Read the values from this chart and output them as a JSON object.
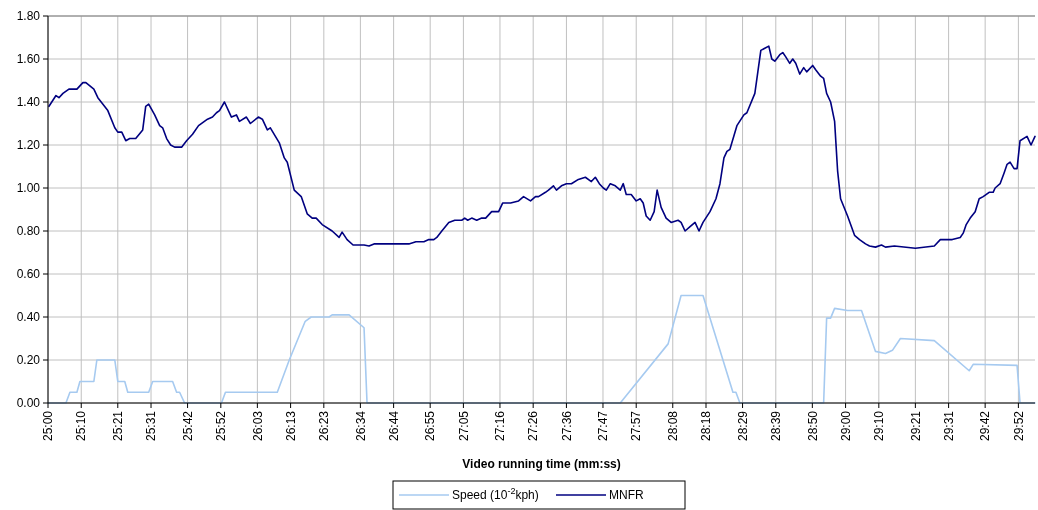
{
  "chart_data": {
    "type": "line",
    "xlabel": "Video running time (mm:ss)",
    "xlim": [
      25,
      29.95
    ],
    "xticks": [
      {
        "value": 25,
        "label": "25:00"
      },
      {
        "value": 25.1667,
        "label": "25:10"
      },
      {
        "value": 25.35,
        "label": "25:21"
      },
      {
        "value": 25.5167,
        "label": "25:31"
      },
      {
        "value": 25.7,
        "label": "25:42"
      },
      {
        "value": 25.8667,
        "label": "25:52"
      },
      {
        "value": 26.05,
        "label": "26:03"
      },
      {
        "value": 26.2167,
        "label": "26:13"
      },
      {
        "value": 26.3833,
        "label": "26:23"
      },
      {
        "value": 26.5667,
        "label": "26:34"
      },
      {
        "value": 26.7333,
        "label": "26:44"
      },
      {
        "value": 26.9167,
        "label": "26:55"
      },
      {
        "value": 27.0833,
        "label": "27:05"
      },
      {
        "value": 27.2667,
        "label": "27:16"
      },
      {
        "value": 27.4333,
        "label": "27:26"
      },
      {
        "value": 27.6,
        "label": "27:36"
      },
      {
        "value": 27.7833,
        "label": "27:47"
      },
      {
        "value": 27.95,
        "label": "27:57"
      },
      {
        "value": 28.1333,
        "label": "28:08"
      },
      {
        "value": 28.3,
        "label": "28:18"
      },
      {
        "value": 28.4833,
        "label": "28:29"
      },
      {
        "value": 28.65,
        "label": "28:39"
      },
      {
        "value": 28.8333,
        "label": "28:50"
      },
      {
        "value": 29,
        "label": "29:00"
      },
      {
        "value": 29.1667,
        "label": "29:10"
      },
      {
        "value": 29.35,
        "label": "29:21"
      },
      {
        "value": 29.5167,
        "label": "29:31"
      },
      {
        "value": 29.7,
        "label": "29:42"
      },
      {
        "value": 29.8667,
        "label": "29:52"
      }
    ],
    "ylim": [
      0,
      1.8
    ],
    "yticks": [
      {
        "value": 0,
        "label": "0.00"
      },
      {
        "value": 0.2,
        "label": "0.20"
      },
      {
        "value": 0.4,
        "label": "0.40"
      },
      {
        "value": 0.6,
        "label": "0.60"
      },
      {
        "value": 0.8,
        "label": "0.80"
      },
      {
        "value": 1,
        "label": "1.00"
      },
      {
        "value": 1.2,
        "label": "1.20"
      },
      {
        "value": 1.4,
        "label": "1.40"
      },
      {
        "value": 1.6,
        "label": "1.60"
      },
      {
        "value": 1.8,
        "label": "1.80"
      }
    ],
    "grid": true,
    "legend": "bottom",
    "marker": "none",
    "line_style": "solid",
    "series": [
      {
        "name": "Speed (10$^{-2}$kph)",
        "color": "#a6caf0",
        "x": [
          25,
          25.09,
          25.11,
          25.145,
          25.16,
          25.23,
          25.245,
          25.335,
          25.35,
          25.385,
          25.4,
          25.505,
          25.525,
          25.625,
          25.645,
          25.66,
          25.685,
          25.87,
          25.89,
          26.15,
          26.21,
          26.29,
          26.32,
          26.41,
          26.425,
          26.51,
          26.585,
          26.6,
          27.87,
          28.11,
          28.175,
          28.285,
          28.435,
          28.45,
          28.47,
          28.89,
          28.905,
          28.925,
          28.945,
          29.01,
          29.08,
          29.15,
          29.2,
          29.235,
          29.275,
          29.445,
          29.62,
          29.64,
          29.86,
          29.875,
          29.95
        ],
        "values": [
          0,
          0,
          0.05,
          0.05,
          0.1,
          0.1,
          0.2,
          0.2,
          0.1,
          0.1,
          0.05,
          0.05,
          0.1,
          0.1,
          0.05,
          0.05,
          0,
          0,
          0.05,
          0.05,
          0.2,
          0.38,
          0.4,
          0.4,
          0.41,
          0.41,
          0.35,
          0,
          0,
          0.275,
          0.5,
          0.5,
          0.05,
          0.05,
          0,
          0,
          0.395,
          0.395,
          0.44,
          0.43,
          0.43,
          0.24,
          0.23,
          0.245,
          0.3,
          0.29,
          0.15,
          0.18,
          0.175,
          0,
          0
        ]
      },
      {
        "name": "MNFR",
        "color": "#000080",
        "x": [
          25.005,
          25.04,
          25.055,
          25.075,
          25.105,
          25.145,
          25.175,
          25.19,
          25.23,
          25.25,
          25.3,
          25.335,
          25.35,
          25.37,
          25.39,
          25.41,
          25.44,
          25.475,
          25.49,
          25.505,
          25.535,
          25.56,
          25.575,
          25.595,
          25.615,
          25.635,
          25.67,
          25.695,
          25.725,
          25.755,
          25.8,
          25.825,
          25.845,
          25.86,
          25.885,
          25.92,
          25.945,
          25.96,
          25.995,
          26.015,
          26.055,
          26.075,
          26.1,
          26.115,
          26.16,
          26.185,
          26.2,
          26.235,
          26.27,
          26.3,
          26.325,
          26.345,
          26.375,
          26.425,
          26.46,
          26.475,
          26.5,
          26.53,
          26.585,
          26.61,
          26.635,
          26.81,
          26.845,
          26.885,
          26.91,
          26.935,
          26.95,
          26.975,
          27.01,
          27.04,
          27.075,
          27.09,
          27.105,
          27.125,
          27.15,
          27.175,
          27.195,
          27.225,
          27.26,
          27.28,
          27.32,
          27.36,
          27.385,
          27.42,
          27.445,
          27.46,
          27.495,
          27.51,
          27.535,
          27.55,
          27.575,
          27.6,
          27.625,
          27.66,
          27.695,
          27.725,
          27.745,
          27.765,
          27.785,
          27.8,
          27.82,
          27.845,
          27.87,
          27.885,
          27.9,
          27.925,
          27.95,
          27.97,
          27.985,
          28,
          28.02,
          28.04,
          28.055,
          28.075,
          28.1,
          28.125,
          28.16,
          28.175,
          28.195,
          28.22,
          28.245,
          28.265,
          28.285,
          28.32,
          28.35,
          28.37,
          28.39,
          28.405,
          28.42,
          28.455,
          28.49,
          28.505,
          28.545,
          28.56,
          28.575,
          28.595,
          28.615,
          28.63,
          28.645,
          28.67,
          28.685,
          28.7,
          28.72,
          28.735,
          28.75,
          28.77,
          28.79,
          28.805,
          28.835,
          28.85,
          28.875,
          28.89,
          28.905,
          28.925,
          28.945,
          28.96,
          28.975,
          29.01,
          29.045,
          29.07,
          29.1,
          29.12,
          29.15,
          29.18,
          29.2,
          29.245,
          29.35,
          29.445,
          29.475,
          29.535,
          29.575,
          29.59,
          29.605,
          29.625,
          29.65,
          29.67,
          29.69,
          29.72,
          29.74,
          29.75,
          29.775,
          29.795,
          29.81,
          29.825,
          29.845,
          29.86,
          29.875,
          29.91,
          29.93,
          29.95
        ],
        "values": [
          1.38,
          1.43,
          1.42,
          1.44,
          1.46,
          1.46,
          1.49,
          1.49,
          1.46,
          1.42,
          1.36,
          1.28,
          1.26,
          1.26,
          1.22,
          1.23,
          1.23,
          1.27,
          1.38,
          1.39,
          1.34,
          1.29,
          1.28,
          1.23,
          1.2,
          1.19,
          1.19,
          1.22,
          1.25,
          1.29,
          1.32,
          1.33,
          1.35,
          1.36,
          1.4,
          1.33,
          1.34,
          1.31,
          1.33,
          1.3,
          1.33,
          1.32,
          1.27,
          1.28,
          1.21,
          1.14,
          1.12,
          0.99,
          0.96,
          0.88,
          0.86,
          0.86,
          0.83,
          0.8,
          0.77,
          0.795,
          0.76,
          0.735,
          0.735,
          0.73,
          0.74,
          0.74,
          0.75,
          0.75,
          0.76,
          0.76,
          0.77,
          0.8,
          0.84,
          0.85,
          0.85,
          0.86,
          0.85,
          0.86,
          0.85,
          0.86,
          0.86,
          0.89,
          0.89,
          0.93,
          0.93,
          0.94,
          0.96,
          0.94,
          0.96,
          0.96,
          0.98,
          0.99,
          1.01,
          0.99,
          1.01,
          1.02,
          1.02,
          1.04,
          1.05,
          1.03,
          1.05,
          1.02,
          1,
          0.99,
          1.02,
          1.01,
          0.99,
          1.02,
          0.97,
          0.97,
          0.94,
          0.95,
          0.93,
          0.87,
          0.85,
          0.89,
          0.99,
          0.91,
          0.86,
          0.84,
          0.85,
          0.84,
          0.8,
          0.82,
          0.84,
          0.8,
          0.84,
          0.89,
          0.95,
          1.02,
          1.14,
          1.17,
          1.18,
          1.29,
          1.34,
          1.35,
          1.44,
          1.54,
          1.64,
          1.65,
          1.66,
          1.6,
          1.59,
          1.62,
          1.63,
          1.61,
          1.58,
          1.6,
          1.58,
          1.53,
          1.56,
          1.54,
          1.57,
          1.55,
          1.52,
          1.51,
          1.44,
          1.4,
          1.31,
          1.08,
          0.95,
          0.87,
          0.78,
          0.76,
          0.74,
          0.73,
          0.725,
          0.735,
          0.725,
          0.73,
          0.72,
          0.73,
          0.76,
          0.76,
          0.77,
          0.79,
          0.83,
          0.86,
          0.89,
          0.95,
          0.96,
          0.98,
          0.98,
          1,
          1.02,
          1.07,
          1.11,
          1.12,
          1.09,
          1.09,
          1.22,
          1.24,
          1.2,
          1.24
        ]
      }
    ]
  }
}
